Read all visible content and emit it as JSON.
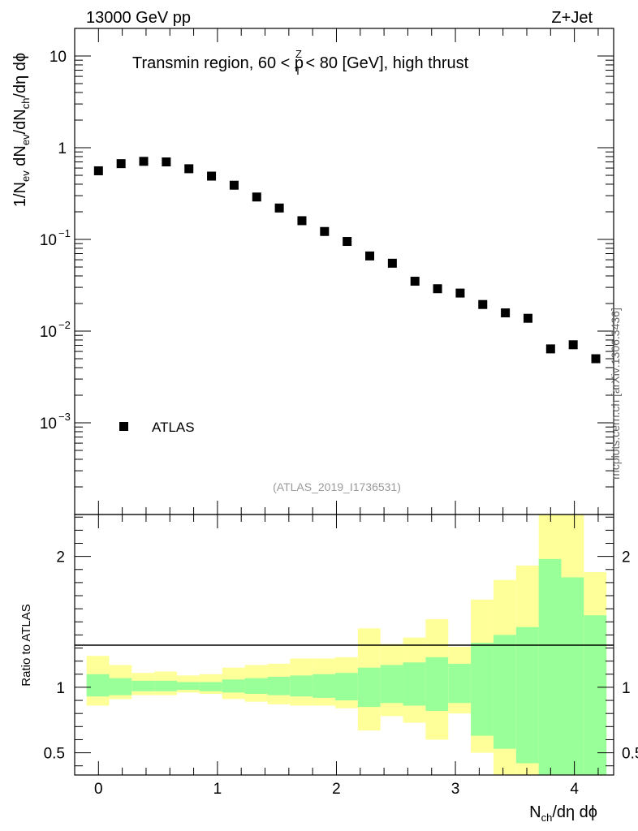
{
  "header": {
    "left": "13000 GeV pp",
    "right": "Z+Jet"
  },
  "chart_data": {
    "type": "scatter",
    "title": "Transmin region, 60 < p_T^Z < 80 [GeV], high thrust",
    "title_parts": {
      "pre": "Transmin region, 60 < p",
      "sup": "Z",
      "sub": "T",
      "post": " < 80 [GeV], high thrust"
    },
    "analysis_id": "(ATLAS_2019_I1736531)",
    "side_label": "mcplots.cern.ch [arXiv:1306.3436]",
    "xlabel": "N_ch/dη dϕ",
    "ylabel": "1/N_ev dN_ev/dN_ch/dη dϕ",
    "ratio_ylabel": "Ratio to ATLAS",
    "xlim": [
      -0.2,
      4.33
    ],
    "ylim": [
      0.0001,
      20
    ],
    "yscale": "log",
    "ratio_ylim": [
      0.33,
      2.32
    ],
    "x_ticks": [
      0,
      1,
      2,
      3,
      4
    ],
    "y_ticks": [
      {
        "value": 10,
        "label": "10"
      },
      {
        "value": 1,
        "label": "1"
      },
      {
        "value": 0.1,
        "label": "10",
        "exp": "−1"
      },
      {
        "value": 0.01,
        "label": "10",
        "exp": "−2"
      },
      {
        "value": 0.001,
        "label": "10",
        "exp": "−3"
      }
    ],
    "ratio_ticks": [
      0.5,
      1,
      2
    ],
    "legend": {
      "label": "ATLAS",
      "placement": "bottom-left"
    },
    "series": [
      {
        "name": "ATLAS",
        "x": [
          0.0,
          0.19,
          0.38,
          0.57,
          0.76,
          0.95,
          1.14,
          1.33,
          1.52,
          1.71,
          1.9,
          2.09,
          2.28,
          2.47,
          2.66,
          2.85,
          3.04,
          3.23,
          3.42,
          3.61,
          3.8,
          3.99,
          4.18
        ],
        "values": [
          0.56,
          0.67,
          0.71,
          0.7,
          0.59,
          0.49,
          0.39,
          0.29,
          0.22,
          0.16,
          0.122,
          0.095,
          0.066,
          0.055,
          0.035,
          0.029,
          0.026,
          0.0195,
          0.0158,
          0.0138,
          0.0064,
          0.0071,
          0.005
        ]
      }
    ],
    "ratio_bands": {
      "bin_edges": [
        -0.1,
        0.09,
        0.28,
        0.47,
        0.66,
        0.85,
        1.04,
        1.23,
        1.42,
        1.61,
        1.8,
        1.99,
        2.18,
        2.37,
        2.56,
        2.75,
        2.94,
        3.13,
        3.32,
        3.51,
        3.7,
        3.89,
        4.08,
        4.27
      ],
      "stat_up": [
        1.1,
        1.07,
        1.05,
        1.05,
        1.04,
        1.04,
        1.06,
        1.07,
        1.08,
        1.09,
        1.1,
        1.11,
        1.15,
        1.17,
        1.19,
        1.23,
        1.18,
        1.34,
        1.4,
        1.46,
        1.98,
        1.84,
        1.55
      ],
      "stat_dn": [
        0.93,
        0.94,
        0.97,
        0.97,
        0.98,
        0.97,
        0.96,
        0.95,
        0.94,
        0.93,
        0.92,
        0.9,
        0.85,
        0.88,
        0.86,
        0.82,
        0.88,
        0.63,
        0.53,
        0.42,
        0.33,
        0.33,
        0.33
      ],
      "syst_up": [
        1.24,
        1.17,
        1.11,
        1.12,
        1.09,
        1.1,
        1.15,
        1.17,
        1.18,
        1.22,
        1.22,
        1.23,
        1.45,
        1.33,
        1.38,
        1.52,
        1.31,
        1.67,
        1.82,
        1.93,
        2.32,
        2.32,
        1.88
      ],
      "syst_dn": [
        0.86,
        0.91,
        0.94,
        0.94,
        0.96,
        0.95,
        0.91,
        0.89,
        0.87,
        0.86,
        0.86,
        0.84,
        0.67,
        0.78,
        0.73,
        0.6,
        0.8,
        0.5,
        0.33,
        0.33,
        0.33,
        0.33,
        0.6
      ]
    },
    "colors": {
      "stat_band": "#99ff99",
      "syst_band": "#ffff99",
      "marker": "#000000",
      "axis": "#000000",
      "secondary_text": "#999999"
    }
  }
}
